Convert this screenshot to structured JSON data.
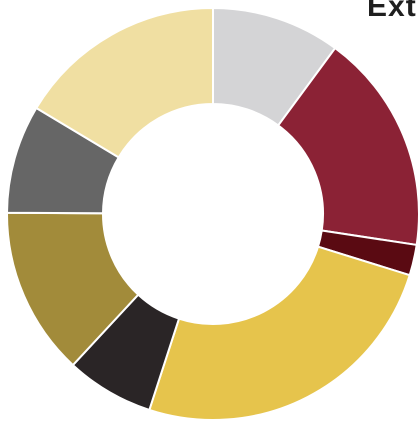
{
  "chart_data": {
    "type": "pie",
    "title": "Ext",
    "donut": true,
    "start_angle_deg": 0,
    "direction": "clockwise",
    "slices": [
      {
        "value": 10.1,
        "color": "#d4d4d6"
      },
      {
        "value": 17.3,
        "color": "#8b2235"
      },
      {
        "value": 2.4,
        "color": "#5a0a12"
      },
      {
        "value": 25.2,
        "color": "#e6c44c"
      },
      {
        "value": 6.9,
        "color": "#2a2526"
      },
      {
        "value": 13.2,
        "color": "#a28b3a"
      },
      {
        "value": 8.5,
        "color": "#666666"
      },
      {
        "value": 16.4,
        "color": "#f0dfa2"
      }
    ]
  }
}
